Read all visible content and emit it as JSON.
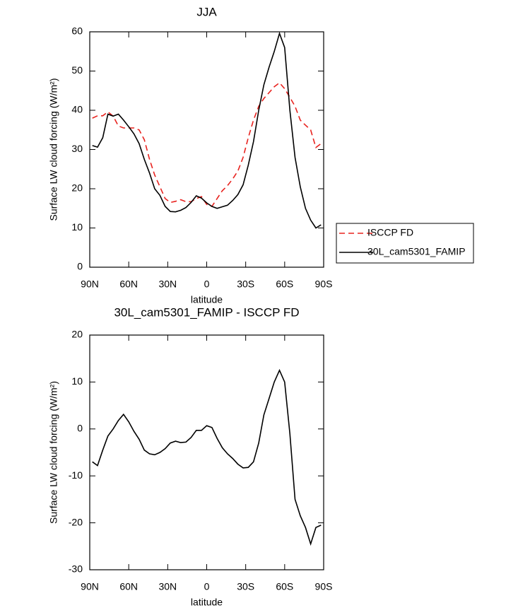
{
  "chart_data": [
    {
      "type": "line",
      "title": "JJA",
      "xlabel": "latitude",
      "ylabel": "Surface LW cloud forcing (W/m²)",
      "x": [
        88,
        84,
        80,
        76,
        72,
        68,
        64,
        60,
        56,
        52,
        48,
        44,
        40,
        36,
        32,
        28,
        24,
        20,
        16,
        12,
        8,
        4,
        0,
        -4,
        -8,
        -12,
        -16,
        -20,
        -24,
        -28,
        -32,
        -36,
        -40,
        -44,
        -48,
        -52,
        -56,
        -60,
        -64,
        -68,
        -72,
        -76,
        -80,
        -84,
        -88
      ],
      "series": [
        {
          "name": "ISCCP FD",
          "color": "#e8231f",
          "dashed": true,
          "values": [
            38,
            38.6,
            38.6,
            39.6,
            38.5,
            36,
            35.5,
            35.5,
            35.5,
            35,
            32.5,
            27.5,
            23.5,
            20.5,
            17.5,
            16.5,
            16.8,
            17.2,
            16.7,
            16.7,
            17.5,
            18,
            16,
            15.5,
            17.5,
            19.5,
            20.8,
            22.5,
            24.5,
            28,
            33,
            37.5,
            41,
            43,
            44.5,
            46,
            47,
            45.5,
            43.3,
            41,
            37.5,
            36.2,
            35,
            30.5,
            31.5
          ]
        },
        {
          "name": "30L_cam5301_FAMIP",
          "color": "#000000",
          "dashed": false,
          "values": [
            31,
            30.6,
            33,
            39,
            38.5,
            39,
            37.5,
            35.8,
            34,
            31.5,
            27.5,
            24,
            20,
            18.3,
            15.5,
            14.2,
            14.1,
            14.5,
            15.2,
            16.5,
            18.2,
            17.6,
            16.4,
            15.5,
            15,
            15.4,
            15.8,
            17,
            18.5,
            21,
            26,
            32,
            40,
            46.5,
            51,
            55,
            59.6,
            56,
            40,
            28,
            20.5,
            15,
            12,
            10,
            10.8
          ]
        }
      ],
      "xlim": [
        90,
        -90
      ],
      "xticks": [
        {
          "value": 90,
          "label": "90N"
        },
        {
          "value": 60,
          "label": "60N"
        },
        {
          "value": 30,
          "label": "30N"
        },
        0,
        {
          "value": -30,
          "label": "30S"
        },
        {
          "value": -60,
          "label": "60S"
        },
        {
          "value": -90,
          "label": "90S"
        }
      ],
      "ylim": [
        0,
        60
      ],
      "yticks": [
        0,
        10,
        20,
        30,
        40,
        50,
        60
      ],
      "legend": "right"
    },
    {
      "type": "line",
      "title": "30L_cam5301_FAMIP - ISCCP FD",
      "xlabel": "latitude",
      "ylabel": "Surface LW cloud forcing (W/m²)",
      "x": [
        88,
        84,
        80,
        76,
        72,
        68,
        64,
        60,
        56,
        52,
        48,
        44,
        40,
        36,
        32,
        28,
        24,
        20,
        16,
        12,
        8,
        4,
        0,
        -4,
        -8,
        -12,
        -16,
        -20,
        -24,
        -28,
        -32,
        -36,
        -40,
        -44,
        -48,
        -52,
        -56,
        -60,
        -64,
        -68,
        -72,
        -76,
        -80,
        -84,
        -88
      ],
      "values": [
        -7,
        -7.8,
        -4.5,
        -1.5,
        0,
        1.8,
        3.1,
        1.5,
        -0.5,
        -2.2,
        -4.5,
        -5.3,
        -5.5,
        -5,
        -4.2,
        -3,
        -2.6,
        -2.9,
        -2.8,
        -1.8,
        -0.3,
        -0.3,
        0.7,
        0.3,
        -2,
        -4,
        -5.3,
        -6.3,
        -7.5,
        -8.3,
        -8.2,
        -7,
        -3,
        3,
        6.5,
        10,
        12.5,
        10,
        -1,
        -15,
        -18.5,
        -21,
        -24.5,
        -21,
        -20.5
      ],
      "color": "#000000",
      "xlim": [
        90,
        -90
      ],
      "xticks": [
        {
          "value": 90,
          "label": "90N"
        },
        {
          "value": 60,
          "label": "60N"
        },
        {
          "value": 30,
          "label": "30N"
        },
        0,
        {
          "value": -30,
          "label": "30S"
        },
        {
          "value": -60,
          "label": "60S"
        },
        {
          "value": -90,
          "label": "90S"
        }
      ],
      "ylim": [
        -30,
        20
      ],
      "yticks": [
        -30,
        -20,
        -10,
        0,
        10,
        20
      ]
    }
  ]
}
